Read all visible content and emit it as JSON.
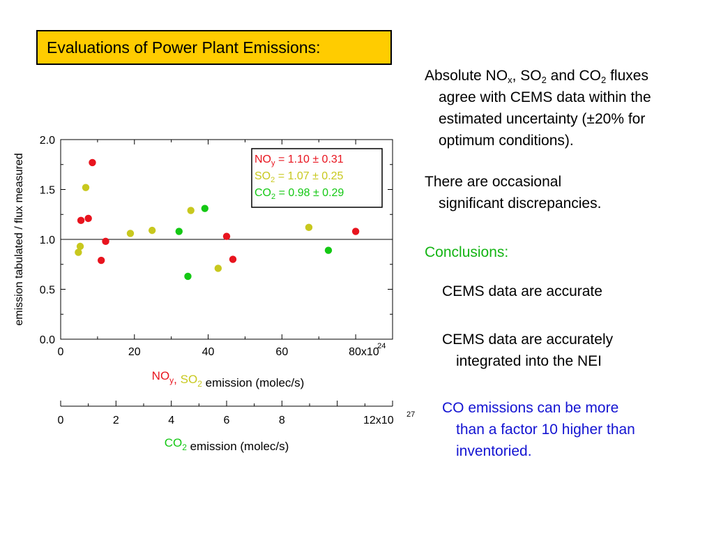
{
  "slide": {
    "title": "Evaluations of Power Plant Emissions:",
    "bullets": {
      "fluxes": {
        "line1_a": "Absolute NO",
        "line1_sub1": "x",
        "line1_b": ", SO",
        "line1_sub2": "2",
        "line1_c": " and CO",
        "line1_sub3": "2",
        "line1_d": " fluxes",
        "line2": "agree with CEMS data within the",
        "line3": "estimated uncertainty (±20% for",
        "line4": "optimum conditions)."
      },
      "discrepancies": {
        "line1": "There are occasional",
        "line2": "significant discrepancies."
      },
      "conclusions_heading": "Conclusions:",
      "accurate": "CEMS data are accurate",
      "integrated": {
        "line1": "CEMS data are accurately",
        "line2": "integrated into the NEI"
      },
      "co": {
        "line1": "CO emissions can be more",
        "line2": "than a factor 10 higher than",
        "line3": "inventoried."
      }
    }
  },
  "colors": {
    "title_bg": "#ffcc00",
    "noy": "#e8141e",
    "so2": "#c8c81e",
    "co2": "#14c814",
    "conclusions": "#14b414",
    "co_text": "#1414d2"
  },
  "chart_data": {
    "type": "scatter",
    "ylabel": "emission tabulated / flux measured",
    "ylim": [
      0,
      2.0
    ],
    "yticks": [
      "0.0",
      "0.5",
      "1.0",
      "1.5",
      "2.0"
    ],
    "reference_line_y": 1.0,
    "x_axis_top": {
      "xlim": [
        0,
        90
      ],
      "ticks": [
        "0",
        "20",
        "40",
        "60",
        "80x10"
      ],
      "exponent": "24",
      "label_parts": [
        {
          "text": "NO",
          "color": "noy"
        },
        {
          "text": "y",
          "color": "noy",
          "sub": true
        },
        {
          "text": ",",
          "color": "noy"
        },
        {
          "text": " SO",
          "color": "so2"
        },
        {
          "text": "2",
          "color": "so2",
          "sub": true
        },
        {
          "text": "  emission (molec/s)",
          "color": "black"
        }
      ]
    },
    "x_axis_bottom": {
      "xlim": [
        0,
        12
      ],
      "ticks": [
        "0",
        "2",
        "4",
        "6",
        "8",
        "12x10"
      ],
      "exponent": "27",
      "label_parts": [
        {
          "text": "CO",
          "color": "co2"
        },
        {
          "text": "2",
          "color": "co2",
          "sub": true
        },
        {
          "text": " emission (molec/s)",
          "color": "black"
        }
      ]
    },
    "legend": {
      "placement": "top-right",
      "entries": [
        {
          "a": "NO",
          "sub": "y",
          "b": " = 1.10 ± 0.31",
          "color": "noy"
        },
        {
          "a": "SO",
          "sub": "2",
          "b": " = 1.07 ± 0.25",
          "color": "so2"
        },
        {
          "a": "CO",
          "sub": "2",
          "b": " = 0.98 ± 0.29",
          "color": "co2"
        }
      ]
    },
    "series": [
      {
        "name": "NOy",
        "color": "noy",
        "x_axis": "top",
        "x": [
          5.5,
          7.5,
          8.6,
          11,
          12.2,
          45,
          46.7,
          80
        ],
        "y": [
          1.19,
          1.21,
          1.77,
          0.79,
          0.98,
          1.03,
          0.8,
          1.08
        ]
      },
      {
        "name": "SO2",
        "color": "so2",
        "x_axis": "top",
        "x": [
          4.8,
          5.3,
          6.8,
          18.9,
          24.8,
          35.3,
          42.7,
          67.3
        ],
        "y": [
          0.87,
          0.93,
          1.52,
          1.06,
          1.09,
          1.29,
          0.71,
          1.12
        ]
      },
      {
        "name": "CO2",
        "color": "co2",
        "x_axis": "top",
        "x": [
          32.1,
          34.5,
          39.1,
          72.6
        ],
        "y": [
          1.08,
          0.63,
          1.31,
          0.89
        ]
      }
    ]
  }
}
